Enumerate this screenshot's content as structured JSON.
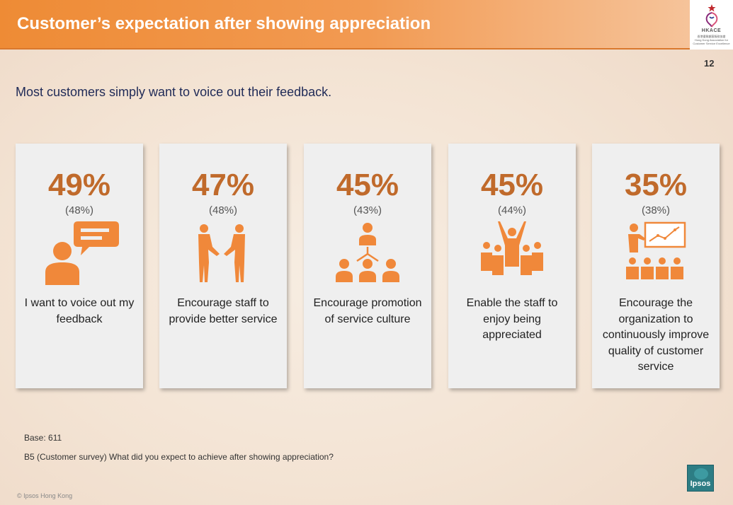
{
  "header": {
    "title": "Customer’s expectation after showing appreciation",
    "logo_name": "HKACE",
    "logo_line1": "香港優質顧客服務協會",
    "logo_line2": "Hong Kong Association for",
    "logo_line3": "Customer Service Excellence"
  },
  "page_number": "12",
  "subtitle": "Most customers simply want to voice out their feedback.",
  "cards": [
    {
      "value": "49%",
      "previous": "(48%)",
      "label": "I want to voice out my feedback",
      "icon": "person-speech-bubble-icon"
    },
    {
      "value": "47%",
      "previous": "(48%)",
      "label": "Encourage staff to provide better service",
      "icon": "handshake-icon"
    },
    {
      "value": "45%",
      "previous": "(43%)",
      "label": "Encourage promotion of service culture",
      "icon": "network-people-icon"
    },
    {
      "value": "45%",
      "previous": "(44%)",
      "label": "Enable the staff to enjoy being appreciated",
      "icon": "cheering-crowd-icon"
    },
    {
      "value": "35%",
      "previous": "(38%)",
      "label": "Encourage the organization to continuously improve quality of customer service",
      "icon": "presentation-audience-icon"
    }
  ],
  "footer": {
    "base": "Base: 611",
    "question": "B5 (Customer survey) What did you expect to achieve after showing appreciation?",
    "copyright": "© Ipsos Hong Kong",
    "brand": "Ipsos"
  },
  "colors": {
    "accent": "#ee8b35",
    "value": "#c06a2b",
    "icon": "#f0883a",
    "subtitle": "#1f2a57"
  }
}
